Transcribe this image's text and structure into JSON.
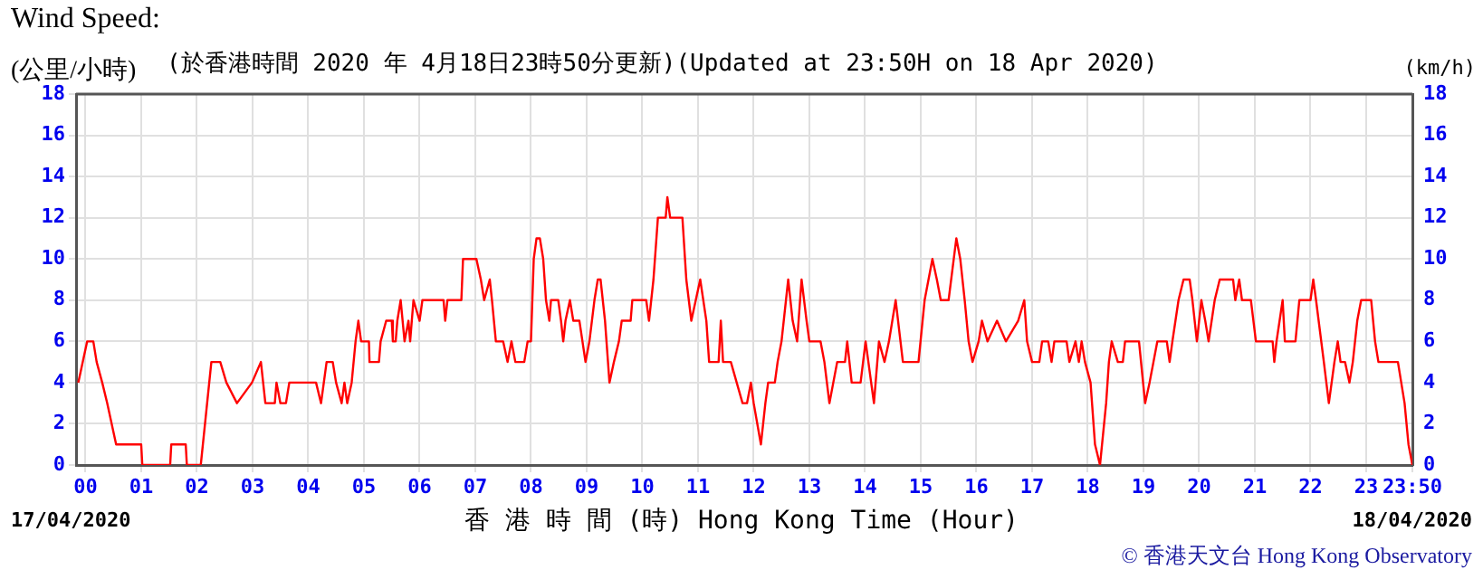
{
  "chart_data": {
    "type": "line",
    "title": "Wind Speed:",
    "subtitle": "(於香港時間 2020 年 4月18日23時50分更新)(Updated at 23:50H on 18 Apr 2020)",
    "ylabel": "(公里/小時)",
    "y2label": "(km/h)",
    "xlabel": "香 港 時 間 (時) Hong Kong Time (Hour)",
    "annotations": [
      "17/04/2020",
      "18/04/2020",
      "© 香港天文台 Hong Kong Observatory"
    ],
    "xlim": [
      -0.17,
      23.83
    ],
    "xticks": [
      {
        "value": 0,
        "label": "00"
      },
      {
        "value": 1,
        "label": "01"
      },
      {
        "value": 2,
        "label": "02"
      },
      {
        "value": 3,
        "label": "03"
      },
      {
        "value": 4,
        "label": "04"
      },
      {
        "value": 5,
        "label": "05"
      },
      {
        "value": 6,
        "label": "06"
      },
      {
        "value": 7,
        "label": "07"
      },
      {
        "value": 8,
        "label": "08"
      },
      {
        "value": 9,
        "label": "09"
      },
      {
        "value": 10,
        "label": "10"
      },
      {
        "value": 11,
        "label": "11"
      },
      {
        "value": 12,
        "label": "12"
      },
      {
        "value": 13,
        "label": "13"
      },
      {
        "value": 14,
        "label": "14"
      },
      {
        "value": 15,
        "label": "15"
      },
      {
        "value": 16,
        "label": "16"
      },
      {
        "value": 17,
        "label": "17"
      },
      {
        "value": 18,
        "label": "18"
      },
      {
        "value": 19,
        "label": "19"
      },
      {
        "value": 20,
        "label": "20"
      },
      {
        "value": 21,
        "label": "21"
      },
      {
        "value": 22,
        "label": "22"
      },
      {
        "value": 23,
        "label": "23"
      },
      {
        "value": 23.83,
        "label": "23:50"
      }
    ],
    "ylim": [
      0,
      18
    ],
    "yticks": [
      0,
      2,
      4,
      6,
      8,
      10,
      12,
      14,
      16,
      18
    ],
    "y2lim": [
      0,
      18
    ],
    "y2ticks": [
      0,
      2,
      4,
      6,
      8,
      10,
      12,
      14,
      16,
      18
    ],
    "grid": true,
    "legend": false,
    "marker": "none",
    "line_style": "solid",
    "series": [
      {
        "color": "#ff0000",
        "x": [
          -0.13,
          0.03,
          0.14,
          0.2,
          0.3,
          0.39,
          0.55,
          1.0,
          1.02,
          1.52,
          1.54,
          1.8,
          1.82,
          2.07,
          2.26,
          2.42,
          2.53,
          2.72,
          2.99,
          3.15,
          3.23,
          3.4,
          3.43,
          3.5,
          3.6,
          3.66,
          4.14,
          4.23,
          4.28,
          4.33,
          4.44,
          4.5,
          4.6,
          4.65,
          4.7,
          4.78,
          4.85,
          4.9,
          4.95,
          5.09,
          5.1,
          5.27,
          5.3,
          5.4,
          5.5,
          5.52,
          5.57,
          5.6,
          5.66,
          5.73,
          5.8,
          5.83,
          5.89,
          6.0,
          6.05,
          6.43,
          6.46,
          6.5,
          6.75,
          6.78,
          7.02,
          7.1,
          7.16,
          7.26,
          7.3,
          7.37,
          7.5,
          7.58,
          7.65,
          7.72,
          7.88,
          7.94,
          8.0,
          8.05,
          8.1,
          8.16,
          8.22,
          8.27,
          8.33,
          8.36,
          8.49,
          8.54,
          8.58,
          8.62,
          8.7,
          8.76,
          8.87,
          8.98,
          9.05,
          9.14,
          9.2,
          9.25,
          9.33,
          9.41,
          9.49,
          9.58,
          9.63,
          9.79,
          9.82,
          10.07,
          10.12,
          10.2,
          10.28,
          10.42,
          10.45,
          10.5,
          10.72,
          10.79,
          10.88,
          10.96,
          11.04,
          11.15,
          11.2,
          11.37,
          11.41,
          11.45,
          11.59,
          11.8,
          11.88,
          11.95,
          12.0,
          12.13,
          12.21,
          12.26,
          12.38,
          12.43,
          12.5,
          12.62,
          12.7,
          12.78,
          12.86,
          12.95,
          13.0,
          13.2,
          13.27,
          13.36,
          13.43,
          13.5,
          13.64,
          13.68,
          13.76,
          13.92,
          14.01,
          14.16,
          14.25,
          14.35,
          14.43,
          14.55,
          14.68,
          14.96,
          15.07,
          15.21,
          15.29,
          15.36,
          15.5,
          15.64,
          15.71,
          15.79,
          15.86,
          15.93,
          16.04,
          16.1,
          16.2,
          16.37,
          16.53,
          16.75,
          16.86,
          16.91,
          17.0,
          17.13,
          17.18,
          17.29,
          17.35,
          17.4,
          17.62,
          17.67,
          17.78,
          17.84,
          17.89,
          17.95,
          18.05,
          18.13,
          18.22,
          18.33,
          18.38,
          18.43,
          18.54,
          18.63,
          18.67,
          18.92,
          19.03,
          19.11,
          19.18,
          19.25,
          19.42,
          19.47,
          19.52,
          19.63,
          19.72,
          19.83,
          19.88,
          19.96,
          20.04,
          20.11,
          20.17,
          20.28,
          20.37,
          20.61,
          20.65,
          20.72,
          20.77,
          20.93,
          21.02,
          21.32,
          21.35,
          21.39,
          21.5,
          21.54,
          21.73,
          21.8,
          22.0,
          22.05,
          22.1,
          22.24,
          22.33,
          22.43,
          22.49,
          22.54,
          22.62,
          22.7,
          22.76,
          22.84,
          22.91,
          23.09,
          23.16,
          23.22,
          23.57,
          23.63,
          23.69,
          23.76,
          23.83
        ],
        "values": [
          4,
          6,
          6,
          5,
          4,
          3,
          1,
          1,
          0,
          0,
          1,
          1,
          0,
          0,
          5,
          5,
          4,
          3,
          4,
          5,
          3,
          3,
          4,
          3,
          3,
          4,
          4,
          3,
          4,
          5,
          5,
          4,
          3,
          4,
          3,
          4,
          6,
          7,
          6,
          6,
          5,
          5,
          6,
          7,
          7,
          6,
          6,
          7,
          8,
          6,
          7,
          6,
          8,
          7,
          8,
          8,
          7,
          8,
          8,
          10,
          10,
          9,
          8,
          9,
          8,
          6,
          6,
          5,
          6,
          5,
          5,
          6,
          6,
          10,
          11,
          11,
          10,
          8,
          7,
          8,
          8,
          7,
          6,
          7,
          8,
          7,
          7,
          5,
          6,
          8,
          9,
          9,
          7,
          4,
          5,
          6,
          7,
          7,
          8,
          8,
          7,
          9,
          12,
          12,
          13,
          12,
          12,
          9,
          7,
          8,
          9,
          7,
          5,
          5,
          7,
          5,
          5,
          3,
          3,
          4,
          3,
          1,
          3,
          4,
          4,
          5,
          6,
          9,
          7,
          6,
          9,
          7,
          6,
          6,
          5,
          3,
          4,
          5,
          5,
          6,
          4,
          4,
          6,
          3,
          6,
          5,
          6,
          8,
          5,
          5,
          8,
          10,
          9,
          8,
          8,
          11,
          10,
          8,
          6,
          5,
          6,
          7,
          6,
          7,
          6,
          7,
          8,
          6,
          5,
          5,
          6,
          6,
          5,
          6,
          6,
          5,
          6,
          5,
          6,
          5,
          4,
          1,
          0,
          3,
          5,
          6,
          5,
          5,
          6,
          6,
          3,
          4,
          5,
          6,
          6,
          5,
          6,
          8,
          9,
          9,
          8,
          6,
          8,
          7,
          6,
          8,
          9,
          9,
          8,
          9,
          8,
          8,
          6,
          6,
          5,
          6,
          8,
          6,
          6,
          8,
          8,
          9,
          8,
          5,
          3,
          5,
          6,
          5,
          5,
          4,
          5,
          7,
          8,
          8,
          6,
          5,
          5,
          4,
          3,
          1,
          0
        ]
      }
    ]
  }
}
